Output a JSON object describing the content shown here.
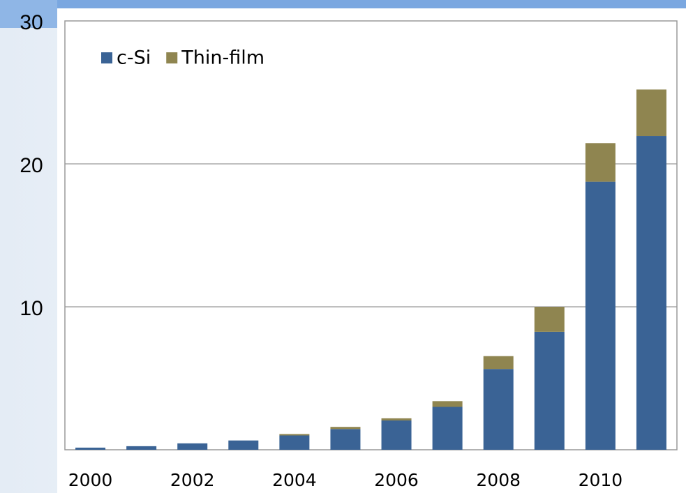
{
  "chart_data": {
    "type": "stacked_bar",
    "categories": [
      "2000",
      null,
      "2002",
      null,
      "2004",
      null,
      "2006",
      null,
      "2008",
      null,
      "2010",
      null
    ],
    "series": [
      {
        "name": "c-Si",
        "color": "#3a6395",
        "values": [
          0.15,
          0.25,
          0.45,
          0.65,
          1.0,
          1.45,
          2.05,
          3.0,
          5.65,
          8.25,
          18.75,
          21.95
        ]
      },
      {
        "name": "Thin-film",
        "color": "#8f8550",
        "values": [
          0,
          0,
          0,
          0,
          0.1,
          0.15,
          0.15,
          0.4,
          0.9,
          1.75,
          2.7,
          3.25
        ]
      }
    ],
    "ylim": [
      0,
      30
    ],
    "yticks": [
      10,
      20,
      30
    ],
    "grid": true,
    "legend": "top-left"
  }
}
